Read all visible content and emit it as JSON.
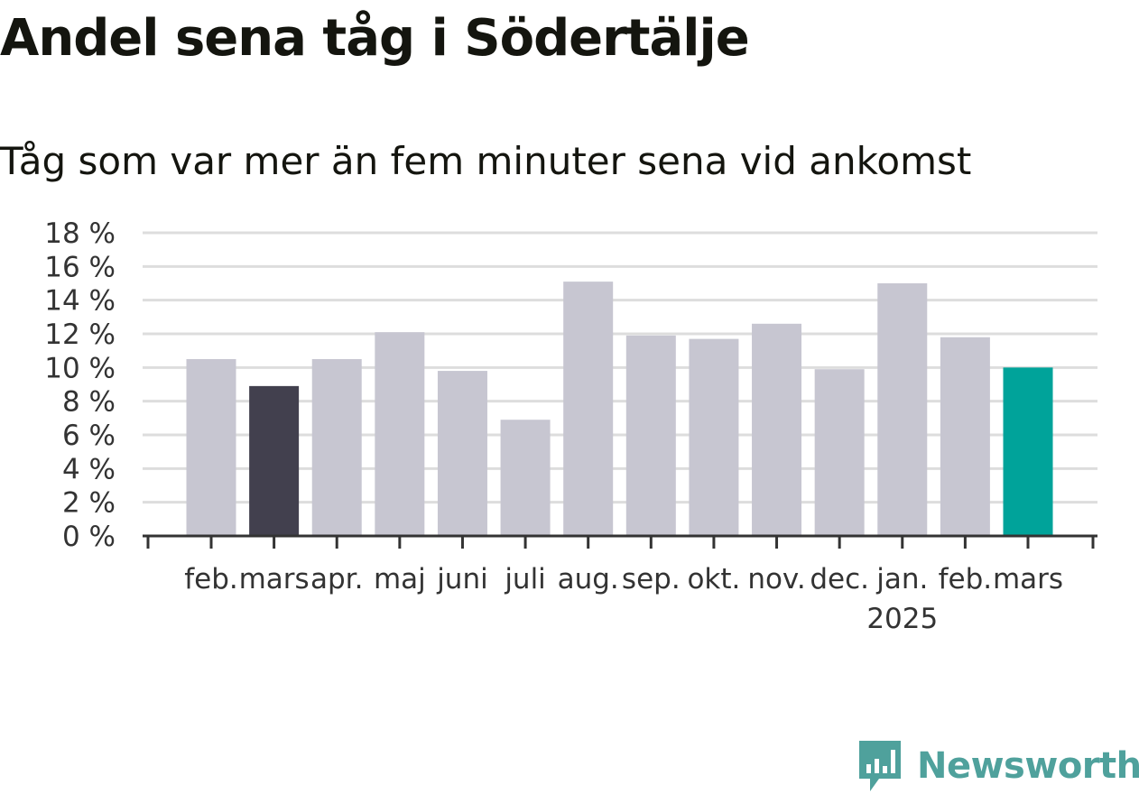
{
  "title": "Andel sena tåg i Södertälje",
  "subtitle": "Tåg som var mer än fem minuter sena vid ankomst",
  "logo_text": "Newsworthy",
  "logo_icon": "newsworthy-logo-icon",
  "colors": {
    "default_bar": "#c7c6d1",
    "highlight_prev": "#42404e",
    "highlight_current": "#00a39a",
    "grid": "#dddddd",
    "axis": "#333333",
    "logo": "#4fa19c"
  },
  "chart_data": {
    "type": "bar",
    "categories": [
      "feb.",
      "mars",
      "apr.",
      "maj",
      "juni",
      "juli",
      "aug.",
      "sep.",
      "okt.",
      "nov.",
      "dec.",
      "jan.",
      "feb.",
      "mars"
    ],
    "year_label": "2025",
    "year_label_index": 11,
    "values": [
      10.5,
      8.9,
      10.5,
      12.1,
      9.8,
      6.9,
      15.1,
      11.9,
      11.7,
      12.6,
      9.9,
      15.0,
      11.8,
      10.0
    ],
    "bar_highlight": [
      "default",
      "prev",
      "default",
      "default",
      "default",
      "default",
      "default",
      "default",
      "default",
      "default",
      "default",
      "default",
      "default",
      "current"
    ],
    "y_ticks": [
      "0 %",
      "2 %",
      "4 %",
      "6 %",
      "8 %",
      "10 %",
      "12 %",
      "14 %",
      "16 %",
      "18 %"
    ],
    "ylim": [
      0,
      18
    ],
    "grid": true,
    "xlabel": "",
    "ylabel": ""
  }
}
